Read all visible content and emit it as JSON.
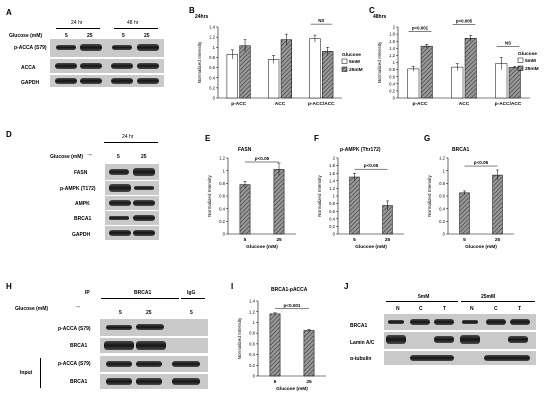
{
  "colors": {
    "band": "#1c1c1c",
    "blot_bg": "#c9c9c9",
    "bar_5mM": "#ffffff",
    "bar_25mM": "#9a9a9a",
    "hatch": "#555555"
  },
  "panels": {
    "A": {
      "letter": "A",
      "time_labels": [
        "24 hr",
        "48 hr"
      ],
      "glucose_label": "Glucose (mM)",
      "lane_values": [
        "5",
        "25",
        "5",
        "25"
      ],
      "blot_labels": [
        "p-ACCA (S79)",
        "ACCA",
        "GAPDH"
      ]
    },
    "B": {
      "letter": "B"
    },
    "C": {
      "letter": "C"
    },
    "D": {
      "letter": "D",
      "time_label": "24 hr",
      "glucose_label": "Glucose (mM)",
      "arrow": "→",
      "lane_values": [
        "5",
        "25"
      ],
      "blot_labels": [
        "FASN",
        "p-AMPK (T172)",
        "AMPK",
        "BRCA1",
        "GAPDH"
      ]
    },
    "E": {
      "letter": "E"
    },
    "F": {
      "letter": "F"
    },
    "G": {
      "letter": "G"
    },
    "H": {
      "letter": "H",
      "ip_label": "IP",
      "ip_target": "BRCA1",
      "igg_label": "IgG",
      "glucose_label": "Glucose (mM)",
      "arrow": "→",
      "lane_values": [
        "5",
        "25",
        "5"
      ],
      "ip_blot_labels": [
        "p-ACCA (S79)",
        "BRCA1"
      ],
      "input_label": "Input",
      "input_blot_labels": [
        "p-ACCA (S79)",
        "BRCA1"
      ]
    },
    "I": {
      "letter": "I"
    },
    "J": {
      "letter": "J",
      "conditions": [
        "5mM",
        "25mM"
      ],
      "fraction_labels": [
        "N",
        "C",
        "T",
        "N",
        "C",
        "T"
      ],
      "blot_labels": [
        "BRCA1",
        "Lamin A/C",
        "α-tubulin"
      ]
    }
  },
  "chart_data": [
    {
      "id": "B",
      "type": "bar",
      "title": "24hrs",
      "ylabel": "Normalized Intensity",
      "ylim": [
        0,
        1.4
      ],
      "yticks": [
        "0",
        "0.2",
        "0.4",
        "0.6",
        "0.8",
        "1",
        "1.2",
        "1.4"
      ],
      "categories": [
        "p-ACC",
        "ACC",
        "p-ACC/ACC"
      ],
      "series": [
        {
          "name": "5mM",
          "values": [
            0.86,
            0.76,
            1.17
          ],
          "errors": [
            0.09,
            0.08,
            0.07
          ]
        },
        {
          "name": "25mM",
          "values": [
            1.03,
            1.15,
            0.92
          ],
          "errors": [
            0.12,
            0.11,
            0.08
          ]
        }
      ],
      "legend_title": "Glucose",
      "annotations": [
        {
          "text": "NS",
          "category": 2
        }
      ]
    },
    {
      "id": "C",
      "type": "bar",
      "title": "48hrs",
      "ylabel": "Normalized Intensity",
      "ylim": [
        0,
        2
      ],
      "yticks": [
        "0",
        "0.2",
        "0.4",
        "0.6",
        "0.8",
        "1",
        "1.2",
        "1.4",
        "1.6",
        "1.8",
        "2"
      ],
      "categories": [
        "p-ACC",
        "ACC",
        "p-ACC/ACC"
      ],
      "series": [
        {
          "name": "5mM",
          "values": [
            0.82,
            0.87,
            0.97
          ],
          "errors": [
            0.07,
            0.1,
            0.17
          ]
        },
        {
          "name": "25mM",
          "values": [
            1.46,
            1.68,
            0.86
          ],
          "errors": [
            0.05,
            0.08,
            0.03
          ]
        }
      ],
      "legend_title": "Glucose",
      "annotations": [
        {
          "text": "p<0.001",
          "category": 0
        },
        {
          "text": "p<0.005",
          "category": 1
        },
        {
          "text": "NS",
          "category": 2
        }
      ]
    },
    {
      "id": "E",
      "type": "bar",
      "title": "FASN",
      "ylabel": "Normalized Intensity",
      "xlabel": "Glucose (mM)",
      "ylim": [
        0,
        1.2
      ],
      "yticks": [
        "0",
        "0.2",
        "0.4",
        "0.6",
        "0.8",
        "1",
        "1.2"
      ],
      "categories": [
        "5",
        "25"
      ],
      "values": [
        0.78,
        1.02
      ],
      "errors": [
        0.05,
        0.1
      ],
      "annotations": [
        {
          "text": "p<0.05"
        }
      ]
    },
    {
      "id": "F",
      "type": "bar",
      "title": "p-AMPK (Thr172)",
      "ylabel": "Normalized Intensity",
      "xlabel": "Glucose (mM)",
      "ylim": [
        0,
        2
      ],
      "yticks": [
        "0",
        "0.2",
        "0.4",
        "0.6",
        "0.8",
        "1",
        "1.2",
        "1.4",
        "1.6",
        "1.8",
        "2"
      ],
      "categories": [
        "5",
        "25"
      ],
      "values": [
        1.5,
        0.75
      ],
      "errors": [
        0.1,
        0.12
      ],
      "annotations": [
        {
          "text": "p<0.05"
        }
      ]
    },
    {
      "id": "G",
      "type": "bar",
      "title": "BRCA1",
      "ylabel": "Normalized Intensity",
      "xlabel": "Glucose (mM)",
      "ylim": [
        0,
        1.2
      ],
      "yticks": [
        "0",
        "0.2",
        "0.4",
        "0.6",
        "0.8",
        "1",
        "1.2"
      ],
      "categories": [
        "5",
        "25"
      ],
      "values": [
        0.65,
        0.93
      ],
      "errors": [
        0.03,
        0.08
      ],
      "annotations": [
        {
          "text": "p<0.05"
        }
      ]
    },
    {
      "id": "I",
      "type": "bar",
      "title": "BRCA1-pACCA",
      "ylabel": "Normalized Intensity",
      "xlabel": "Glucose (mM)",
      "ylim": [
        0,
        1.4
      ],
      "yticks": [
        "0",
        "0.2",
        "0.4",
        "0.6",
        "0.8",
        "1",
        "1.2",
        "1.4"
      ],
      "categories": [
        "5",
        "25"
      ],
      "values": [
        1.16,
        0.85
      ],
      "errors": [
        0.02,
        0.02
      ],
      "annotations": [
        {
          "text": "p<0.001"
        }
      ]
    }
  ]
}
